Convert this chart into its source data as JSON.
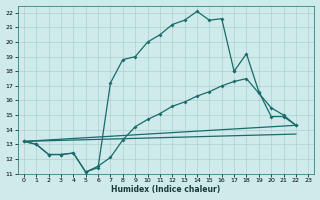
{
  "xlabel": "Humidex (Indice chaleur)",
  "background_color": "#ceeaea",
  "grid_color": "#b0d0d0",
  "line_color": "#1a6b6b",
  "xlim": [
    -0.5,
    23.5
  ],
  "ylim": [
    11,
    22.5
  ],
  "xticks": [
    0,
    1,
    2,
    3,
    4,
    5,
    6,
    7,
    8,
    9,
    10,
    11,
    12,
    13,
    14,
    15,
    16,
    17,
    18,
    19,
    20,
    21,
    22,
    23
  ],
  "yticks": [
    11,
    12,
    13,
    14,
    15,
    16,
    17,
    18,
    19,
    20,
    21,
    22
  ],
  "line1_x": [
    0,
    1,
    2,
    3,
    4,
    5,
    6,
    7,
    8,
    9,
    10,
    11,
    12,
    13,
    14,
    15,
    16,
    17
  ],
  "line1_y": [
    13.2,
    13.0,
    12.3,
    12.3,
    12.4,
    11.1,
    11.4,
    17.2,
    18.8,
    19.0,
    20.0,
    20.5,
    21.2,
    21.5,
    22.1,
    21.5,
    21.6,
    18.0
  ],
  "line1_tail_x": [
    17,
    18,
    19,
    20,
    21,
    22
  ],
  "line1_tail_y": [
    18.0,
    19.2,
    16.6,
    14.9,
    14.9,
    14.3
  ],
  "line2_x": [
    0,
    1,
    2,
    3,
    4,
    5,
    6,
    7,
    8,
    9,
    10,
    11,
    12,
    13,
    14,
    15,
    16,
    17,
    18,
    19,
    20,
    21,
    22
  ],
  "line2_y": [
    13.2,
    13.0,
    12.3,
    12.3,
    12.4,
    11.1,
    11.5,
    12.1,
    13.3,
    14.2,
    14.7,
    15.1,
    15.6,
    15.9,
    16.3,
    16.6,
    17.0,
    17.3,
    17.5,
    16.5,
    15.5,
    15.0,
    14.3
  ],
  "line3_x": [
    0,
    22
  ],
  "line3_y": [
    13.2,
    14.3
  ],
  "line4_x": [
    0,
    22
  ],
  "line4_y": [
    13.2,
    13.7
  ]
}
